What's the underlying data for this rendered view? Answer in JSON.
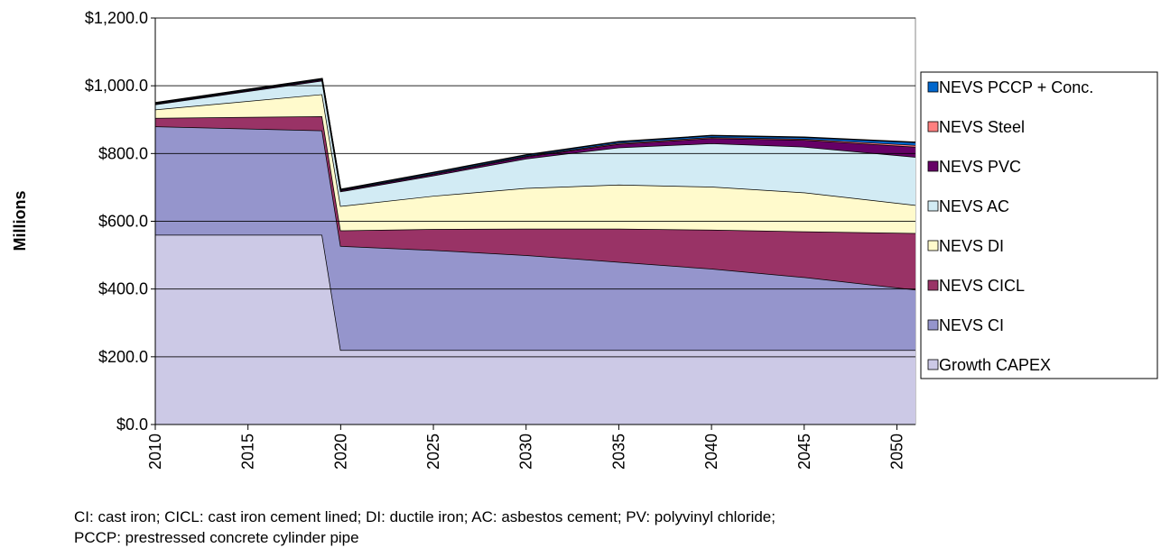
{
  "chart_data": {
    "type": "stacked-area",
    "y_label": "Millions",
    "notes": [
      "CI: cast iron; CICL: cast iron cement lined; DI: ductile iron; AC: asbestos cement; PV: polyvinyl chloride;",
      "PCCP: prestressed concrete cylinder pipe"
    ],
    "x": [
      2010,
      2019,
      2020,
      2025,
      2030,
      2035,
      2040,
      2045,
      2051
    ],
    "xlim": [
      2010,
      2051
    ],
    "xticks": [
      2010,
      2015,
      2020,
      2025,
      2030,
      2035,
      2040,
      2045,
      2050
    ],
    "ylim": [
      0,
      1200
    ],
    "yticks": [
      {
        "value": 0,
        "label": "$0.0"
      },
      {
        "value": 200,
        "label": "$200.0"
      },
      {
        "value": 400,
        "label": "$400.0"
      },
      {
        "value": 600,
        "label": "$600.0"
      },
      {
        "value": 800,
        "label": "$800.0"
      },
      {
        "value": 1000,
        "label": "$1,000.0"
      },
      {
        "value": 1200,
        "label": "$1,200.0"
      }
    ],
    "grid": true,
    "legend": "right",
    "series": [
      {
        "name": "Growth CAPEX",
        "color": "#ccc9e6",
        "values": [
          560,
          560,
          220,
          220,
          220,
          220,
          220,
          220,
          220
        ]
      },
      {
        "name": "NEVS CI",
        "color": "#9595cc",
        "values": [
          320,
          308,
          307,
          295,
          280,
          260,
          240,
          215,
          178
        ]
      },
      {
        "name": "NEVS CICL",
        "color": "#993366",
        "values": [
          25,
          42,
          46,
          62,
          78,
          98,
          115,
          135,
          167
        ]
      },
      {
        "name": "NEVS DI",
        "color": "#fffacc",
        "values": [
          25,
          65,
          72,
          98,
          120,
          130,
          127,
          115,
          83
        ]
      },
      {
        "name": "NEVS AC",
        "color": "#d2ebf4",
        "values": [
          15,
          40,
          43,
          60,
          87,
          110,
          128,
          135,
          142
        ]
      },
      {
        "name": "NEVS PVC",
        "color": "#660066",
        "values": [
          2,
          3,
          3,
          4,
          6,
          10,
          15,
          20,
          30
        ]
      },
      {
        "name": "NEVS Steel",
        "color": "#ff8080",
        "values": [
          1,
          1,
          1,
          2,
          2,
          3,
          3,
          3,
          5
        ]
      },
      {
        "name": "NEVS PCCP + Conc.",
        "color": "#0066cc",
        "values": [
          2,
          2,
          2,
          3,
          3,
          4,
          5,
          5,
          8
        ]
      }
    ]
  }
}
